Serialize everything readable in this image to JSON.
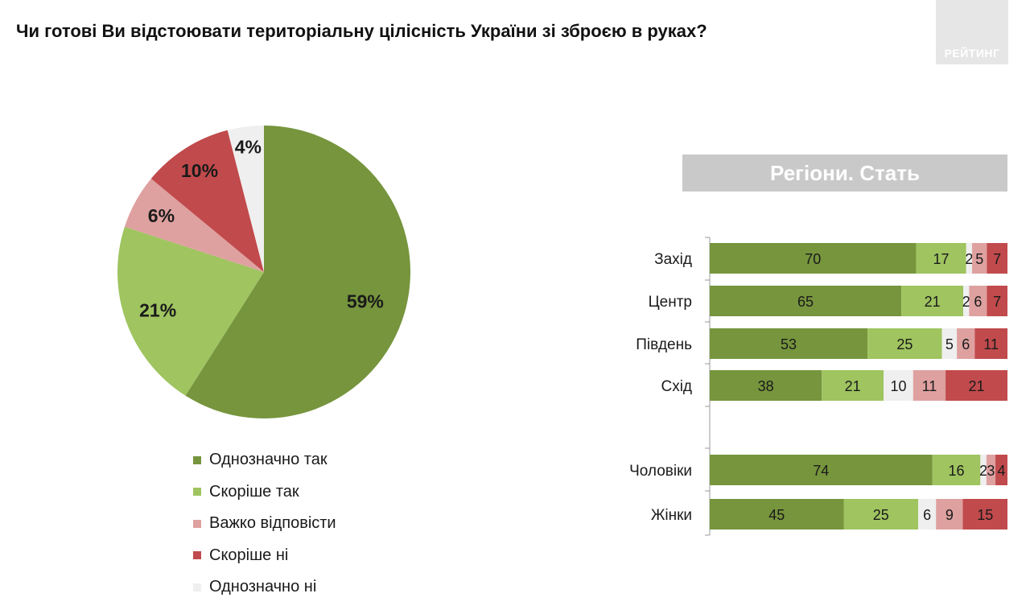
{
  "title": "Чи готові Ви відстоювати територіальну цілісність України зі зброєю в руках?",
  "logo_text": "РЕЙТИНГ",
  "colors": {
    "definitely_yes": "#76953d",
    "rather_yes": "#9fc460",
    "hard_to_say": "#dea1a0",
    "rather_no": "#c14a4c",
    "definitely_no": "#efefef"
  },
  "chart_data": [
    {
      "type": "pie",
      "slices": [
        {
          "name": "Однозначно так",
          "value": 59,
          "label": "59%",
          "color": "#76953d"
        },
        {
          "name": "Скоріше так",
          "value": 21,
          "label": "21%",
          "color": "#9fc460"
        },
        {
          "name": "Важко відповісти",
          "value": 6,
          "label": "6%",
          "color": "#dea1a0"
        },
        {
          "name": "Скоріше ні",
          "value": 10,
          "label": "10%",
          "color": "#c14a4c"
        },
        {
          "name": "Однозначно ні",
          "value": 4,
          "label": "4%",
          "color": "#efefef"
        }
      ],
      "legend": [
        "Однозначно так",
        "Скоріше так",
        "Важко відповісти",
        "Скоріше ні",
        "Однозначно ні"
      ]
    },
    {
      "type": "bar",
      "orientation": "horizontal",
      "stacked": true,
      "title": "Регіони. Стать",
      "categories": [
        "Захід",
        "Центр",
        "Південь",
        "Схід",
        "Чоловіки",
        "Жінки"
      ],
      "series": [
        {
          "name": "Однозначно так",
          "color": "#76953d",
          "values": [
            70,
            65,
            53,
            38,
            74,
            45
          ]
        },
        {
          "name": "Скоріше так",
          "color": "#9fc460",
          "values": [
            17,
            21,
            25,
            21,
            16,
            25
          ]
        },
        {
          "name": "Однозначно ні",
          "color": "#efefef",
          "values": [
            2,
            2,
            5,
            10,
            2,
            6
          ]
        },
        {
          "name": "Важко відповісти",
          "color": "#dea1a0",
          "values": [
            5,
            6,
            6,
            11,
            3,
            9
          ]
        },
        {
          "name": "Скоріше ні",
          "color": "#c14a4c",
          "values": [
            7,
            7,
            11,
            21,
            4,
            15
          ]
        }
      ]
    }
  ]
}
